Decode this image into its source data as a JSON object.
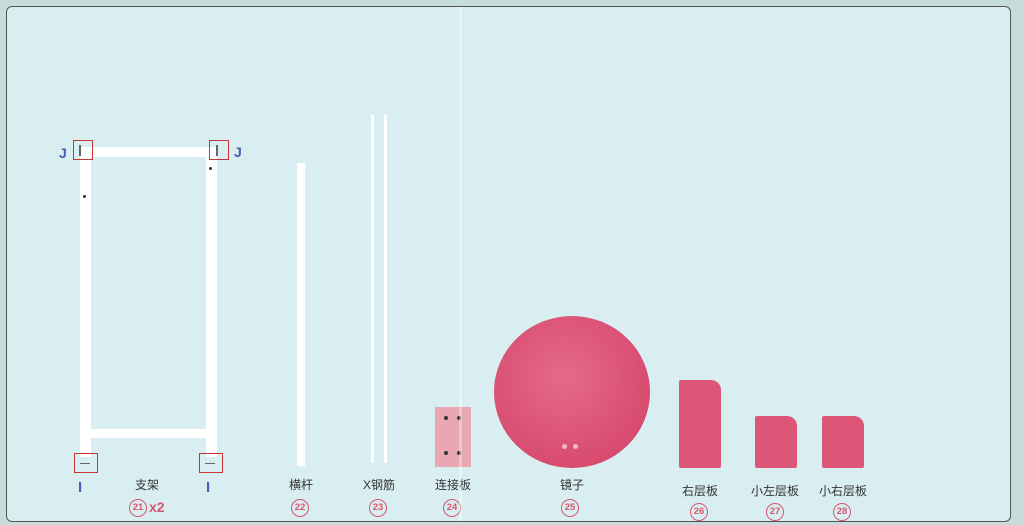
{
  "parts": [
    {
      "name": "支架",
      "number": "21",
      "quantity": "x2"
    },
    {
      "name": "横杆",
      "number": "22"
    },
    {
      "name": "X钢筋",
      "number": "23"
    },
    {
      "name": "连接板",
      "number": "24"
    },
    {
      "name": "镜子",
      "number": "25"
    },
    {
      "name": "右层板",
      "number": "26"
    },
    {
      "name": "小左层板",
      "number": "27"
    },
    {
      "name": "小右层板",
      "number": "28"
    }
  ],
  "markers": {
    "top": "J",
    "bottom": "I"
  },
  "colors": {
    "background": "#d8eef0",
    "part_pink": "#d94b70",
    "number_circle": "#d9566f",
    "marker_blue": "#4a5ab8",
    "callout_box": "#c43535"
  }
}
